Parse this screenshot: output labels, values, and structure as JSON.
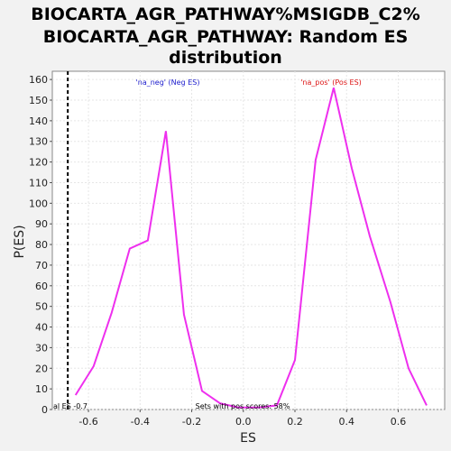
{
  "chart_data": {
    "type": "line",
    "title_lines": [
      "BIOCARTA_AGR_PATHWAY%MSIGDB_C2%",
      "BIOCARTA_AGR_PATHWAY: Random ES",
      "distribution"
    ],
    "xlabel": "ES",
    "ylabel": "P(ES)",
    "xlim": [
      -0.74,
      0.78
    ],
    "ylim": [
      0,
      164
    ],
    "x_ticks": [
      "-0.6",
      "-0.4",
      "-0.2",
      "0.0",
      "0.2",
      "0.4",
      "0.6"
    ],
    "x_tick_values": [
      -0.6,
      -0.4,
      -0.2,
      0.0,
      0.2,
      0.4,
      0.6
    ],
    "y_ticks": [
      "0",
      "10",
      "20",
      "30",
      "40",
      "50",
      "60",
      "70",
      "80",
      "90",
      "100",
      "110",
      "120",
      "130",
      "140",
      "150",
      "160"
    ],
    "y_tick_values": [
      0,
      10,
      20,
      30,
      40,
      50,
      60,
      70,
      80,
      90,
      100,
      110,
      120,
      130,
      140,
      150,
      160
    ],
    "grid": true,
    "series": [
      {
        "color": "#ee2fee",
        "x": [
          -0.65,
          -0.58,
          -0.51,
          -0.44,
          -0.37,
          -0.3,
          -0.23,
          -0.16,
          -0.09,
          -0.02,
          0.06,
          0.13,
          0.2,
          0.28,
          0.35,
          0.42,
          0.49,
          0.57,
          0.64,
          0.71
        ],
        "y": [
          7,
          21,
          47,
          78,
          82,
          135,
          46,
          9,
          3,
          1,
          1,
          2,
          24,
          121,
          156,
          117,
          84,
          52,
          20,
          2
        ]
      }
    ],
    "annotations": {
      "neg_label": "'na_neg' (Neg ES)",
      "pos_label": "'na_pos' (Pos ES)",
      "neg_color": "#1a1acc",
      "pos_color": "#dd1111",
      "actual_es_text": "al ES -0.7",
      "actual_es_value": -0.68,
      "pos_scores_text": "Sets with pos scores: 58%"
    }
  }
}
